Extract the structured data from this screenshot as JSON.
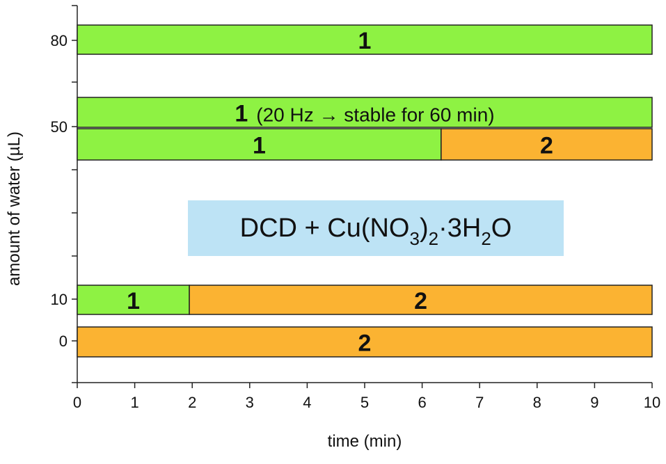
{
  "chart_data": {
    "type": "timeline",
    "x_label": "time (min)",
    "y_label": "amount of water (µL)",
    "xlim": [
      0,
      10
    ],
    "xticks": [
      0,
      1,
      2,
      3,
      4,
      5,
      6,
      7,
      8,
      9,
      10
    ],
    "y_categories": [
      null,
      "0",
      "10",
      null,
      null,
      null,
      "50",
      null,
      "80",
      null
    ],
    "rows": [
      {
        "segments": [
          {
            "start": 0,
            "end": 10,
            "label": "1",
            "color": "#8ef243"
          }
        ]
      },
      {
        "segments": [
          {
            "start": 0,
            "end": 10,
            "label": "1",
            "note": "(20 Hz → stable for 60 min)",
            "color": "#8ef243"
          }
        ]
      },
      {
        "segments": [
          {
            "start": 0,
            "end": 6.33,
            "label": "1",
            "color": "#8ef243"
          },
          {
            "start": 6.33,
            "end": 10,
            "label": "2",
            "color": "#fbb332"
          }
        ]
      },
      {
        "segments": [
          {
            "start": 0,
            "end": 1.95,
            "label": "1",
            "color": "#8ef243"
          },
          {
            "start": 1.95,
            "end": 10,
            "label": "2",
            "color": "#fbb332"
          }
        ]
      },
      {
        "segments": [
          {
            "start": 0,
            "end": 10,
            "label": "2",
            "color": "#fbb332"
          }
        ]
      }
    ],
    "annotation": [
      {
        "text": "DCD + Cu(NO"
      },
      {
        "text": "3",
        "sub": true
      },
      {
        "text": ")"
      },
      {
        "text": "2",
        "sub": true
      },
      {
        "text": "·3H"
      },
      {
        "text": "2",
        "sub": true
      },
      {
        "text": "O"
      }
    ]
  }
}
